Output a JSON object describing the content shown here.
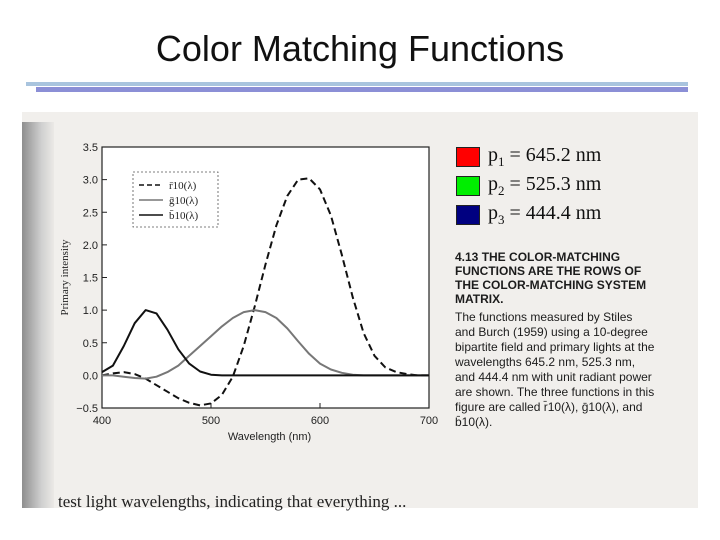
{
  "slide": {
    "title": "Color Matching Functions"
  },
  "primaries": [
    {
      "label": "p",
      "sub": "1",
      "value": " = 645.2 nm",
      "color": "#ff0000"
    },
    {
      "label": "p",
      "sub": "2",
      "value": " = 525.3 nm",
      "color": "#00ee00"
    },
    {
      "label": "p",
      "sub": "3",
      "value": " = 444.4 nm",
      "color": "#000080"
    }
  ],
  "caption": {
    "heading": "4.13 THE COLOR-MATCHING FUNCTIONS ARE THE ROWS OF THE COLOR-MATCHING SYSTEM MATRIX.",
    "body": "The functions measured by Stiles and Burch (1959) using a 10-degree bipartite field and primary lights at the wavelengths 645.2 nm, 525.3 nm, and 444.4 nm with unit radiant power are shown. The three functions in this figure are called r̄10(λ), ḡ10(λ), and b̄10(λ)."
  },
  "bottom_text": "test light wavelengths, indicating that everything ...",
  "chart_data": {
    "type": "line",
    "xlabel": "Wavelength (nm)",
    "ylabel": "Primary intensity",
    "xlim": [
      400,
      700
    ],
    "ylim": [
      -0.5,
      3.5
    ],
    "x_ticks": [
      400,
      500,
      600,
      700
    ],
    "y_ticks": [
      -0.5,
      0.0,
      0.5,
      1.0,
      1.5,
      2.0,
      2.5,
      3.0,
      3.5
    ],
    "y_tick_labels": [
      "−0.5",
      "0.0",
      "0.5",
      "1.0",
      "1.5",
      "2.0",
      "2.5",
      "3.0",
      "3.5"
    ],
    "grid": false,
    "legend_position": "top-left",
    "x": [
      400,
      410,
      420,
      430,
      440,
      450,
      460,
      470,
      480,
      490,
      500,
      510,
      520,
      530,
      540,
      550,
      560,
      570,
      580,
      590,
      600,
      610,
      620,
      630,
      640,
      650,
      660,
      670,
      680,
      690,
      700
    ],
    "series": [
      {
        "name": "r̄10(λ)",
        "style": "dashed",
        "color": "#111111",
        "values": [
          0.0,
          0.03,
          0.05,
          0.02,
          -0.05,
          -0.15,
          -0.25,
          -0.35,
          -0.42,
          -0.46,
          -0.43,
          -0.3,
          -0.02,
          0.45,
          1.05,
          1.7,
          2.3,
          2.75,
          3.0,
          3.02,
          2.85,
          2.45,
          1.85,
          1.2,
          0.65,
          0.3,
          0.12,
          0.05,
          0.02,
          0.0,
          0.0
        ]
      },
      {
        "name": "ḡ10(λ)",
        "style": "solid",
        "color": "#777777",
        "values": [
          0.0,
          0.0,
          -0.02,
          -0.04,
          -0.05,
          -0.02,
          0.05,
          0.15,
          0.3,
          0.45,
          0.6,
          0.75,
          0.88,
          0.97,
          1.0,
          0.97,
          0.88,
          0.72,
          0.52,
          0.33,
          0.18,
          0.09,
          0.04,
          0.01,
          0.0,
          0.0,
          0.0,
          0.0,
          0.0,
          0.0,
          0.0
        ]
      },
      {
        "name": "b̄10(λ)",
        "style": "solid",
        "color": "#111111",
        "values": [
          0.05,
          0.15,
          0.45,
          0.8,
          1.0,
          0.95,
          0.7,
          0.4,
          0.18,
          0.06,
          0.01,
          0.0,
          0.0,
          0.0,
          0.0,
          0.0,
          0.0,
          0.0,
          0.0,
          0.0,
          0.0,
          0.0,
          0.0,
          0.0,
          0.0,
          0.0,
          0.0,
          0.0,
          0.0,
          0.0,
          0.0
        ]
      }
    ]
  }
}
